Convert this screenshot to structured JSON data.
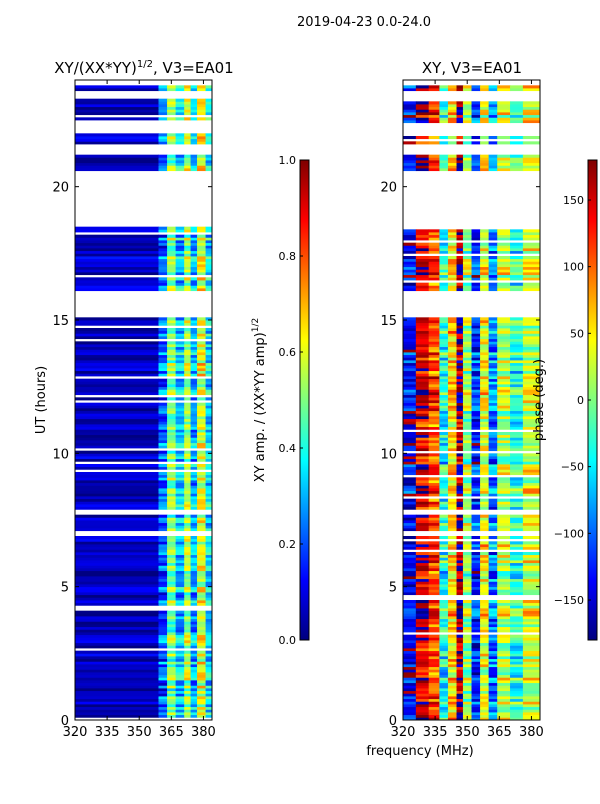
{
  "suptitle": "2019-04-23 0.0-24.0",
  "shared_xlabel": "frequency (MHz)",
  "colors": {
    "background": "#ffffff",
    "axis": "#000000",
    "nodata": "#ffffff"
  },
  "chart_data": [
    {
      "type": "heatmap",
      "title": "XY/(XX*YY)",
      "title_exp": "1/2",
      "title_suffix": ", V3=EA01",
      "ylabel": "UT (hours)",
      "xlim": [
        320,
        384
      ],
      "ylim": [
        0,
        24
      ],
      "x_ticks": [
        320,
        335,
        350,
        365,
        380
      ],
      "x_tick_labels": [
        "320",
        "335",
        "350",
        "365",
        "380"
      ],
      "y_ticks": [
        0,
        5,
        10,
        15,
        20
      ],
      "y_tick_labels": [
        "0",
        "5",
        "10",
        "15",
        "20"
      ],
      "colormap": "jet",
      "colorbar": {
        "label": "XY amp. / (XX*YY amp)",
        "label_exp": "1/2",
        "vmin": 0.0,
        "vmax": 1.0,
        "ticks": [
          0.0,
          0.2,
          0.4,
          0.6,
          0.8,
          1.0
        ],
        "tick_labels": [
          "0.0",
          "0.2",
          "0.4",
          "0.6",
          "0.8",
          "1.0"
        ]
      },
      "gaps_hours": [
        [
          15.0,
          16.0
        ],
        [
          18.4,
          20.6
        ],
        [
          21.2,
          21.6
        ],
        [
          22.0,
          22.4
        ],
        [
          23.3,
          23.6
        ],
        [
          23.8,
          24.0
        ],
        [
          6.8,
          7.0
        ],
        [
          7.6,
          7.8
        ]
      ],
      "bands_mhz": [
        [
          320,
          359,
          0.06
        ],
        [
          359,
          363,
          0.22
        ],
        [
          363,
          367,
          0.5
        ],
        [
          367,
          371,
          0.32
        ],
        [
          371,
          374,
          0.55
        ],
        [
          374,
          377,
          0.3
        ],
        [
          377,
          381,
          0.6
        ],
        [
          381,
          384,
          0.35
        ]
      ]
    },
    {
      "type": "heatmap",
      "title": "XY, V3=EA01",
      "ylabel": "",
      "xlim": [
        320,
        384
      ],
      "ylim": [
        0,
        24
      ],
      "x_ticks": [
        320,
        335,
        350,
        365,
        380
      ],
      "x_tick_labels": [
        "320",
        "335",
        "350",
        "365",
        "380"
      ],
      "y_ticks": [
        0,
        5,
        10,
        15,
        20
      ],
      "y_tick_labels": [
        "0",
        "5",
        "10",
        "15",
        "20"
      ],
      "colormap": "jet",
      "colorbar": {
        "label": "phase (deg.)",
        "vmin": -180,
        "vmax": 180,
        "ticks": [
          -150,
          -100,
          -50,
          0,
          50,
          100,
          150
        ],
        "tick_labels": [
          "−150",
          "−100",
          "−50",
          "0",
          "50",
          "100",
          "150"
        ]
      },
      "gaps_hours": [
        [
          15.0,
          16.0
        ],
        [
          18.4,
          20.6
        ],
        [
          21.2,
          21.6
        ],
        [
          22.0,
          22.4
        ],
        [
          23.3,
          23.6
        ],
        [
          23.8,
          24.0
        ],
        [
          6.8,
          7.0
        ],
        [
          7.6,
          7.8
        ]
      ],
      "phase_bands_mhz": [
        [
          320,
          326,
          -140
        ],
        [
          326,
          332,
          150
        ],
        [
          332,
          337,
          110
        ],
        [
          337,
          341,
          -40
        ],
        [
          341,
          345,
          60
        ],
        [
          345,
          348,
          170
        ],
        [
          348,
          352,
          10
        ],
        [
          352,
          356,
          -120
        ],
        [
          356,
          360,
          40
        ],
        [
          360,
          364,
          -90
        ],
        [
          364,
          370,
          20
        ],
        [
          370,
          376,
          -30
        ],
        [
          376,
          384,
          30
        ]
      ]
    }
  ]
}
